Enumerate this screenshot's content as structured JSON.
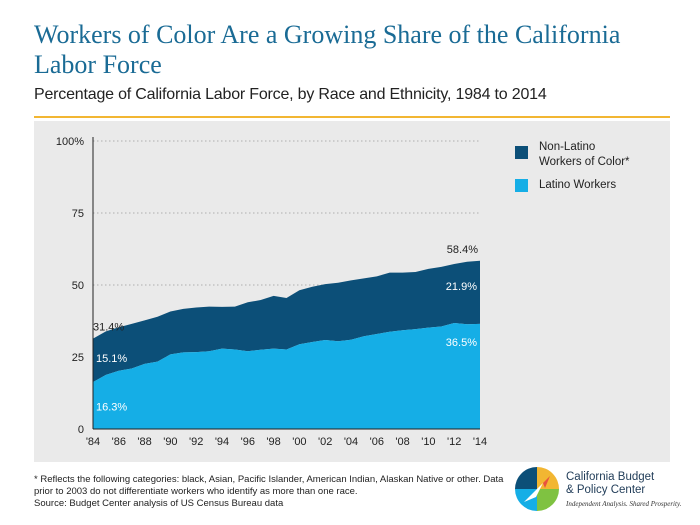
{
  "title": "Workers of Color Are a Growing Share of the California Labor Force",
  "subtitle": "Percentage of California Labor Force, by Race and Ethnicity, 1984 to 2014",
  "colors": {
    "latino": "#15aee6",
    "non_latino": "#0c4f78",
    "title": "#1a6b95",
    "rule": "#f2b632"
  },
  "chart_data": {
    "type": "area",
    "stacked": true,
    "x": [
      1984,
      1985,
      1986,
      1987,
      1988,
      1989,
      1990,
      1991,
      1992,
      1993,
      1994,
      1995,
      1996,
      1997,
      1998,
      1999,
      2000,
      2001,
      2002,
      2003,
      2004,
      2005,
      2006,
      2007,
      2008,
      2009,
      2010,
      2011,
      2012,
      2013,
      2014
    ],
    "x_tick_labels": [
      "'84",
      "'86",
      "'88",
      "'90",
      "'92",
      "'94",
      "'96",
      "'98",
      "'00",
      "'02",
      "'04",
      "'06",
      "'08",
      "'10",
      "'12",
      "'14"
    ],
    "y_tick_labels": [
      "0",
      "25",
      "50",
      "75",
      "100%"
    ],
    "y_ticks": [
      0,
      25,
      50,
      75,
      100
    ],
    "ylim": [
      0,
      100
    ],
    "grid": true,
    "legend_position": "right",
    "series": [
      {
        "name": "Latino Workers",
        "values": [
          16.3,
          18.8,
          20.2,
          21.0,
          22.6,
          23.4,
          25.9,
          26.6,
          26.7,
          27.0,
          27.9,
          27.6,
          27.0,
          27.5,
          27.9,
          27.6,
          29.4,
          30.2,
          30.9,
          30.5,
          31.0,
          32.2,
          33.0,
          33.8,
          34.3,
          34.7,
          35.2,
          35.6,
          36.8,
          36.4,
          36.5
        ]
      },
      {
        "name": "Non-Latino Workers of Color*",
        "values": [
          15.1,
          15.1,
          15.1,
          15.5,
          15.1,
          15.6,
          14.9,
          15.1,
          15.5,
          15.5,
          14.5,
          14.9,
          17.0,
          17.3,
          18.3,
          17.9,
          18.8,
          19.2,
          19.4,
          20.3,
          20.6,
          20.1,
          20.0,
          20.5,
          20.0,
          19.8,
          20.4,
          20.7,
          20.5,
          21.7,
          21.9
        ]
      }
    ],
    "annotations": {
      "total_start": "31.4%",
      "total_end": "58.4%",
      "non_latino_start": "15.1%",
      "non_latino_end": "21.9%",
      "latino_start": "16.3%",
      "latino_end": "36.5%"
    }
  },
  "legend": {
    "non_latino_label": "Non-Latino Workers of Color*",
    "latino_label": "Latino Workers"
  },
  "footnote": {
    "line1": "* Reflects the following categories: black, Asian, Pacific Islander, American Indian, Alaskan Native or other. Data prior to 2003 do not differentiate workers who identify as more than one race.",
    "line2": "Source: Budget Center analysis of US Census Bureau data"
  },
  "logo": {
    "name_line1": "California Budget",
    "name_line2": "& Policy Center",
    "tagline": "Independent Analysis. Shared Prosperity."
  }
}
